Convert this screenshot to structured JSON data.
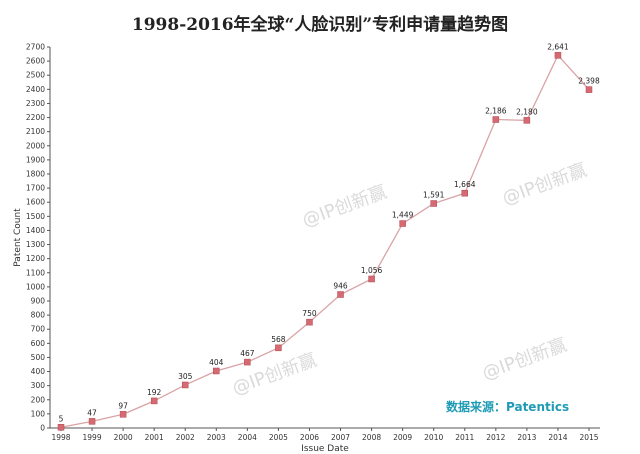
{
  "chart_data": {
    "type": "line",
    "title": "1998-2016年全球“人脸识别”专利申请量趋势图",
    "xlabel": "Issue Date",
    "ylabel": "Patent Count",
    "x": [
      "1998",
      "1999",
      "2000",
      "2001",
      "2002",
      "2003",
      "2004",
      "2005",
      "2006",
      "2007",
      "2008",
      "2009",
      "2010",
      "2011",
      "2012",
      "2013",
      "2014",
      "2015"
    ],
    "values": [
      5,
      47,
      97,
      192,
      305,
      404,
      467,
      568,
      750,
      946,
      1056,
      1449,
      1591,
      1664,
      2186,
      2180,
      2641,
      2398
    ],
    "data_labels": [
      "5",
      "47",
      "97",
      "192",
      "305",
      "404",
      "467",
      "568",
      "750",
      "946",
      "1,056",
      "1,449",
      "1,591",
      "1,664",
      "2,186",
      "2,180",
      "2,641",
      "2,398"
    ],
    "ylim": [
      0,
      2700
    ],
    "yticks": [
      0,
      100,
      200,
      300,
      400,
      500,
      600,
      700,
      800,
      900,
      1000,
      1100,
      1200,
      1300,
      1400,
      1500,
      1600,
      1700,
      1800,
      1900,
      2000,
      2100,
      2200,
      2300,
      2400,
      2500,
      2600,
      2700
    ],
    "grid": false,
    "line_color": "#d9a3a6",
    "marker_color": "#d66a72"
  },
  "source_text": "数据来源：Patentics",
  "watermarks": [
    "@IP创新赢",
    "@IP创新赢",
    "@IP创新赢",
    "@IP创新赢"
  ]
}
